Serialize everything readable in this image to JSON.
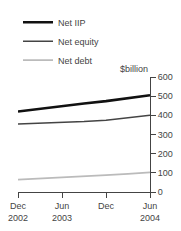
{
  "chart_data": {
    "type": "line",
    "ylabel": "$billion",
    "categories": [
      "Dec\n2002",
      null,
      "Jun\n2003",
      null,
      "Dec",
      null,
      "Jun\n2004"
    ],
    "series": [
      {
        "name": "Net IIP",
        "color": "#111111",
        "values": [
          420,
          435,
          448,
          462,
          474,
          488,
          505
        ]
      },
      {
        "name": "Net equity",
        "color": "#444444",
        "values": [
          355,
          358,
          362,
          368,
          375,
          386,
          400
        ]
      },
      {
        "name": "Net debt",
        "color": "#bbbbbb",
        "values": [
          65,
          70,
          76,
          82,
          88,
          95,
          102
        ]
      }
    ],
    "ylim": [
      0,
      600
    ],
    "yticks": [
      0,
      100,
      200,
      300,
      400,
      500,
      600
    ],
    "grid": false,
    "legend": "top left"
  }
}
